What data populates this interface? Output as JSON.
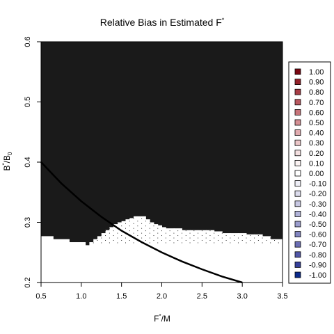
{
  "chart_data": {
    "type": "heatmap",
    "title": "Relative Bias in Estimated F*",
    "title_text": "Relative Bias in Estimated F",
    "title_sup": "*",
    "xlabel_main": "F",
    "xlabel_sup": "*",
    "xlabel_tail": "/M",
    "ylabel_main": "B",
    "ylabel_sup": "*",
    "ylabel_mid": "/B",
    "ylabel_sub": "0",
    "xlim": [
      0.5,
      3.5
    ],
    "ylim": [
      0.2,
      0.6
    ],
    "x_ticks": [
      {
        "value": 0.5,
        "label": "0.5"
      },
      {
        "value": 1.0,
        "label": "1.0"
      },
      {
        "value": 1.5,
        "label": "1.5"
      },
      {
        "value": 2.0,
        "label": "2.0"
      },
      {
        "value": 2.5,
        "label": "2.5"
      },
      {
        "value": 3.0,
        "label": "3.0"
      },
      {
        "value": 3.5,
        "label": "3.5"
      }
    ],
    "y_ticks": [
      {
        "value": 0.2,
        "label": "0.2"
      },
      {
        "value": 0.3,
        "label": "0.3"
      },
      {
        "value": 0.4,
        "label": "0.4"
      },
      {
        "value": 0.5,
        "label": "0.5"
      },
      {
        "value": 0.6,
        "label": "0.6"
      }
    ],
    "upper_region_color": "#1a1a1a",
    "lower_region_color": "#ffffff",
    "stipple_color": "#000000",
    "boundary": {
      "x": [
        0.5,
        0.65,
        0.85,
        1.05,
        1.1,
        1.15,
        1.2,
        1.25,
        1.3,
        1.35,
        1.4,
        1.45,
        1.5,
        1.55,
        1.6,
        1.65,
        1.7,
        1.8,
        1.85,
        1.9,
        1.95,
        2.0,
        2.05,
        2.15,
        2.25,
        2.35,
        2.45,
        2.55,
        2.65,
        2.75,
        2.85,
        2.95,
        3.05,
        3.15,
        3.25,
        3.35,
        3.5
      ],
      "y": [
        0.277,
        0.272,
        0.267,
        0.262,
        0.267,
        0.272,
        0.277,
        0.282,
        0.287,
        0.292,
        0.297,
        0.3,
        0.302,
        0.305,
        0.307,
        0.31,
        0.31,
        0.305,
        0.3,
        0.297,
        0.295,
        0.292,
        0.29,
        0.29,
        0.287,
        0.287,
        0.287,
        0.287,
        0.285,
        0.282,
        0.282,
        0.282,
        0.28,
        0.28,
        0.277,
        0.272,
        0.268
      ]
    },
    "stipple_region": {
      "x_range": [
        1.05,
        3.5
      ],
      "y_floor": 0.262,
      "spacing_x": 0.05,
      "spacing_y": 0.008
    },
    "curve": {
      "label": "",
      "x": [
        0.5,
        0.75,
        1.0,
        1.25,
        1.5,
        1.75,
        2.0,
        2.25,
        2.5,
        2.75,
        3.0
      ],
      "y": [
        0.4,
        0.365,
        0.335,
        0.309,
        0.286,
        0.267,
        0.25,
        0.235,
        0.222,
        0.21,
        0.2
      ],
      "color": "#000000"
    },
    "legend": {
      "placement": "right",
      "entries": [
        {
          "label": "1.00",
          "color": "#7a0612"
        },
        {
          "label": "0.90",
          "color": "#94212a"
        },
        {
          "label": "0.80",
          "color": "#a83d45"
        },
        {
          "label": "0.70",
          "color": "#b9585f"
        },
        {
          "label": "0.60",
          "color": "#c8747a"
        },
        {
          "label": "0.50",
          "color": "#d58f94"
        },
        {
          "label": "0.40",
          "color": "#e1abaf"
        },
        {
          "label": "0.30",
          "color": "#ebc6c8"
        },
        {
          "label": "0.20",
          "color": "#f3dfe0"
        },
        {
          "label": "0.10",
          "color": "#fbf3f3"
        },
        {
          "label": "0.00",
          "color": "#ffffff"
        },
        {
          "label": "-0.10",
          "color": "#eeeef6"
        },
        {
          "label": "-0.20",
          "color": "#dcdced"
        },
        {
          "label": "-0.30",
          "color": "#c8c8e3"
        },
        {
          "label": "-0.40",
          "color": "#b1b3d9"
        },
        {
          "label": "-0.50",
          "color": "#9a9ccd"
        },
        {
          "label": "-0.60",
          "color": "#8285c0"
        },
        {
          "label": "-0.70",
          "color": "#6a6db3"
        },
        {
          "label": "-0.80",
          "color": "#5157a7"
        },
        {
          "label": "-0.90",
          "color": "#36409a"
        },
        {
          "label": "-1.00",
          "color": "#0b2a8c"
        }
      ]
    }
  }
}
